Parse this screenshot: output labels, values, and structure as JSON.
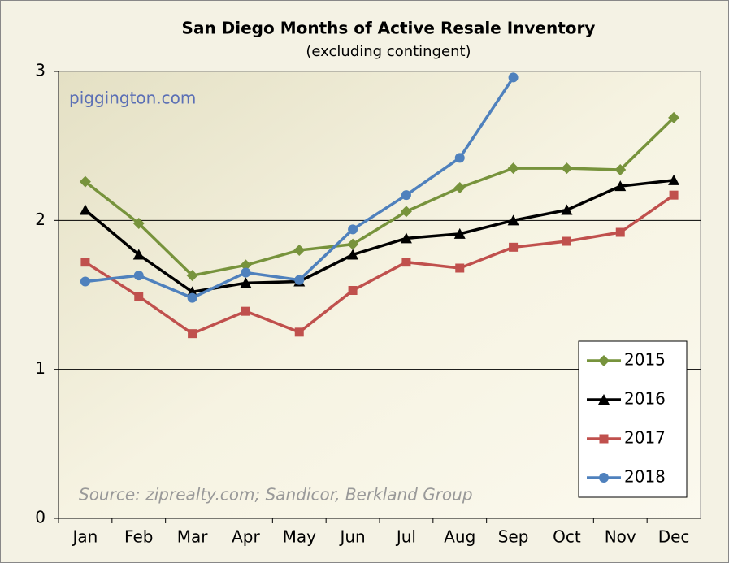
{
  "chart_data": {
    "type": "line",
    "title": "San Diego Months of Active Resale Inventory",
    "subtitle": "(excluding contingent)",
    "annotations": [
      "piggington.com",
      "Source: ziprealty.com; Sandicor, Berkland Group"
    ],
    "categories": [
      "Jan",
      "Feb",
      "Mar",
      "Apr",
      "May",
      "Jun",
      "Jul",
      "Aug",
      "Sep",
      "Oct",
      "Nov",
      "Dec"
    ],
    "ylim": [
      0,
      3
    ],
    "yticks": [
      0,
      1,
      2,
      3
    ],
    "grid": true,
    "legend": "bottom-right",
    "series": [
      {
        "name": "2015",
        "color": "#77933c",
        "marker": "diamond",
        "values": [
          2.26,
          1.98,
          1.63,
          1.7,
          1.8,
          1.84,
          2.06,
          2.22,
          2.35,
          2.35,
          2.34,
          2.69
        ]
      },
      {
        "name": "2016",
        "color": "#000000",
        "marker": "triangle",
        "values": [
          2.07,
          1.77,
          1.52,
          1.58,
          1.59,
          1.77,
          1.88,
          1.91,
          2.0,
          2.07,
          2.23,
          2.27
        ]
      },
      {
        "name": "2017",
        "color": "#c0504d",
        "marker": "square",
        "values": [
          1.72,
          1.49,
          1.24,
          1.39,
          1.25,
          1.53,
          1.72,
          1.68,
          1.82,
          1.86,
          1.92,
          2.17
        ]
      },
      {
        "name": "2018",
        "color": "#4f81bd",
        "marker": "circle",
        "values": [
          1.59,
          1.63,
          1.48,
          1.65,
          1.6,
          1.94,
          2.17,
          2.42,
          2.96,
          null,
          null,
          null
        ]
      }
    ]
  }
}
